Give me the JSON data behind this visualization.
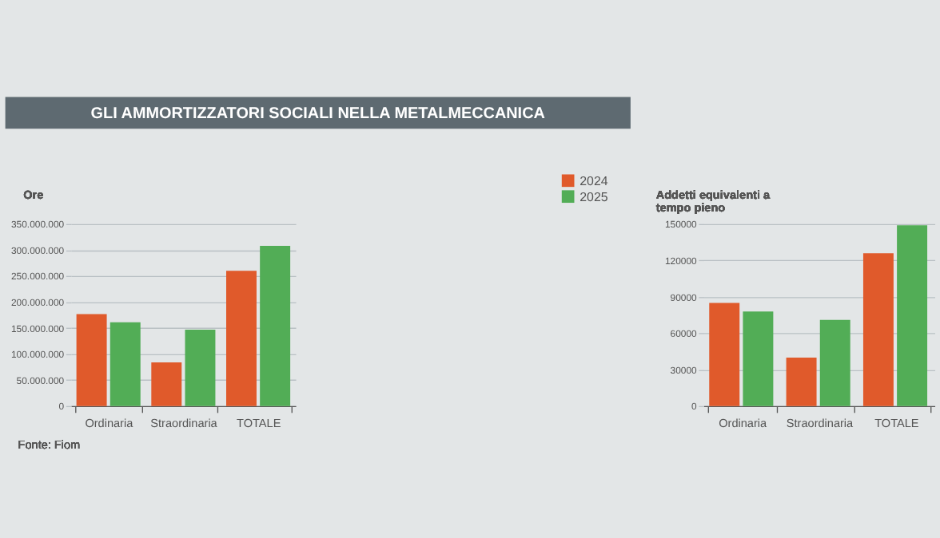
{
  "chart_data": [
    {
      "type": "bar",
      "title": "GLI AMMORTIZZATORI SOCIALI NELLA METALMECCANICA",
      "ylabel": "Ore",
      "categories": [
        "Ordinaria",
        "Straordinaria",
        "TOTALE"
      ],
      "series": [
        {
          "name": "2024",
          "color": "#e05a2b",
          "values": [
            177000000,
            84000000,
            260000000
          ]
        },
        {
          "name": "2025",
          "color": "#52ad56",
          "values": [
            161000000,
            147000000,
            308000000
          ]
        }
      ],
      "ylim": [
        0,
        350000000
      ],
      "yticks": [
        0,
        {
          "value": 50000000,
          "label": "50.000.000"
        },
        {
          "value": 100000000,
          "label": "100.000.000"
        },
        {
          "value": 150000000,
          "label": "150.000.000"
        },
        {
          "value": 200000000,
          "label": "200.000.000"
        },
        {
          "value": 250000000,
          "label": "250.000.000"
        },
        {
          "value": 300000000,
          "label": "300.000.000"
        },
        {
          "value": 350000000,
          "label": "350.000.000"
        }
      ],
      "grid": "y",
      "legend": "top right",
      "annotations": [
        "Fonte: Fiom"
      ]
    },
    {
      "type": "bar",
      "ylabel": "Addetti equivalenti a tempo pieno",
      "categories": [
        "Ordinaria",
        "Straordinaria",
        "TOTALE"
      ],
      "series": [
        {
          "name": "2024",
          "color": "#e05a2b",
          "values": [
            85000,
            40000,
            126000
          ]
        },
        {
          "name": "2025",
          "color": "#52ad56",
          "values": [
            78000,
            71000,
            149000
          ]
        }
      ],
      "ylim": [
        0,
        150000
      ],
      "yticks": [
        0,
        30000,
        60000,
        90000,
        120000,
        150000
      ],
      "grid": "y"
    }
  ]
}
